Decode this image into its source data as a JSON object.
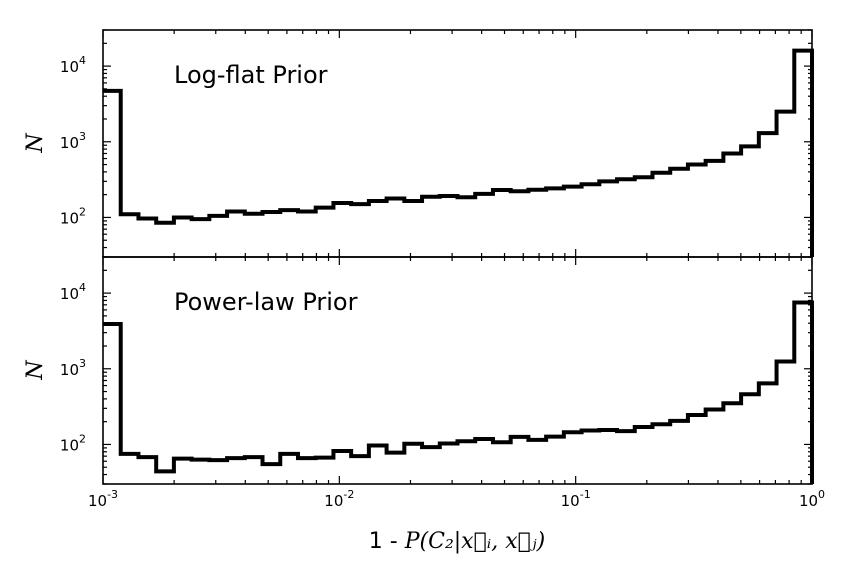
{
  "chart_data": {
    "type": "histogram",
    "xscale": "log",
    "yscale": "log",
    "xlim": [
      0.001,
      1
    ],
    "ylim": [
      30,
      30000
    ],
    "x_ticks": [
      {
        "base": "10",
        "exp": "-3",
        "value": 0.001
      },
      {
        "base": "10",
        "exp": "-2",
        "value": 0.01
      },
      {
        "base": "10",
        "exp": "-1",
        "value": 0.1
      },
      {
        "base": "10",
        "exp": "0",
        "value": 1
      }
    ],
    "y_ticks": [
      {
        "base": "10",
        "exp": "2",
        "value": 100
      },
      {
        "base": "10",
        "exp": "3",
        "value": 1000
      },
      {
        "base": "10",
        "exp": "4",
        "value": 10000
      }
    ],
    "xlabel_prefix": "1 - ",
    "xlabel_math": "P(C₂|x⃗ᵢ, x⃗ⱼ)",
    "ylabel": "N",
    "panels": [
      {
        "title": "Log-flat Prior",
        "counts": [
          4700,
          110,
          97,
          85,
          100,
          95,
          105,
          120,
          112,
          118,
          125,
          120,
          135,
          155,
          150,
          165,
          178,
          165,
          188,
          192,
          185,
          205,
          230,
          222,
          232,
          242,
          255,
          275,
          300,
          320,
          340,
          390,
          440,
          500,
          560,
          700,
          870,
          1300,
          2500,
          16000
        ]
      },
      {
        "title": "Power-law Prior",
        "counts": [
          3900,
          75,
          68,
          44,
          65,
          63,
          62,
          66,
          68,
          55,
          75,
          66,
          67,
          82,
          70,
          97,
          78,
          102,
          92,
          103,
          110,
          118,
          107,
          126,
          115,
          127,
          145,
          153,
          155,
          150,
          170,
          185,
          205,
          245,
          290,
          350,
          460,
          640,
          1250,
          7500
        ]
      }
    ]
  }
}
